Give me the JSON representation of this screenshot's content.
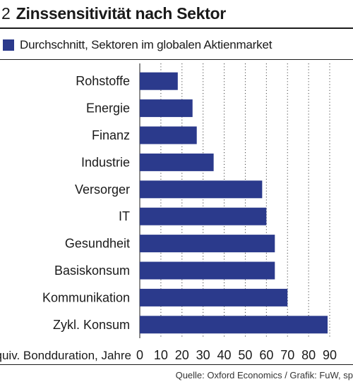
{
  "figure": {
    "number": "2",
    "title": "Zinssensitivität nach Sektor",
    "source": "Quelle: Oxford Economics / Grafik: FuW, sp"
  },
  "chart_data": {
    "type": "bar",
    "orientation": "horizontal",
    "title": "Zinssensitivität nach Sektor",
    "categories": [
      "Rohstoffe",
      "Energie",
      "Finanz",
      "Industrie",
      "Versorger",
      "IT",
      "Gesundheit",
      "Basiskonsum",
      "Kommunikation",
      "Zykl. Konsum"
    ],
    "series": [
      {
        "name": "Durchschnitt, Sektoren im globalen Aktienmarket",
        "values": [
          18,
          25,
          27,
          35,
          58,
          60,
          64,
          64,
          70,
          89
        ],
        "color": "#2b3a8c"
      }
    ],
    "xlabel": "äquiv. Bondduration, Jahre",
    "xlim": [
      0,
      90
    ],
    "xticks": [
      0,
      10,
      20,
      30,
      40,
      50,
      60,
      70,
      80,
      90
    ],
    "grid": "vertical-dotted",
    "legend": "top-left"
  }
}
